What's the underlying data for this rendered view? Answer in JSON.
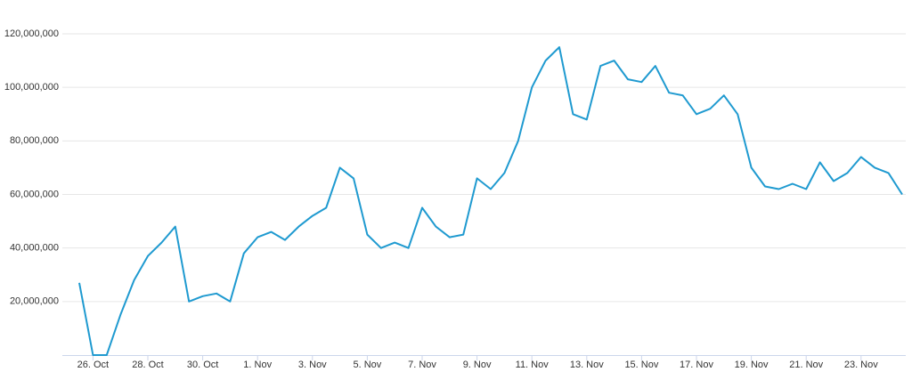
{
  "chart_data": {
    "type": "line",
    "categories": [
      null,
      "26. Oct",
      null,
      null,
      null,
      "28. Oct",
      null,
      null,
      null,
      "30. Oct",
      null,
      null,
      null,
      "1. Nov",
      null,
      null,
      null,
      "3. Nov",
      null,
      null,
      null,
      "5. Nov",
      null,
      null,
      null,
      "7. Nov",
      null,
      null,
      null,
      "9. Nov",
      null,
      null,
      null,
      "11. Nov",
      null,
      null,
      null,
      "13. Nov",
      null,
      null,
      null,
      "15. Nov",
      null,
      null,
      null,
      "17. Nov",
      null,
      null,
      null,
      "19. Nov",
      null,
      null,
      null,
      "21. Nov",
      null,
      null,
      null,
      "23. Nov",
      null,
      null,
      null
    ],
    "series": [
      {
        "color": "#1f9ad0",
        "values": [
          27000000,
          0,
          0,
          15000000,
          28000000,
          37000000,
          42000000,
          48000000,
          20000000,
          22000000,
          23000000,
          20000000,
          38000000,
          44000000,
          46000000,
          43000000,
          48000000,
          52000000,
          55000000,
          70000000,
          66000000,
          45000000,
          40000000,
          42000000,
          40000000,
          55000000,
          48000000,
          44000000,
          45000000,
          66000000,
          62000000,
          68000000,
          80000000,
          100000000,
          110000000,
          115000000,
          90000000,
          88000000,
          108000000,
          110000000,
          103000000,
          102000000,
          108000000,
          98000000,
          97000000,
          90000000,
          92000000,
          97000000,
          90000000,
          70000000,
          63000000,
          62000000,
          64000000,
          62000000,
          72000000,
          65000000,
          68000000,
          74000000,
          70000000,
          68000000,
          60000000
        ]
      }
    ],
    "ylim": [
      0,
      120000000
    ],
    "yticks": [
      {
        "value": 20000000,
        "label": "20,000,000"
      },
      {
        "value": 40000000,
        "label": "40,000,000"
      },
      {
        "value": 60000000,
        "label": "60,000,000"
      },
      {
        "value": 80000000,
        "label": "80,000,000"
      },
      {
        "value": 100000000,
        "label": "100,000,000"
      },
      {
        "value": 120000000,
        "label": "120,000,000"
      }
    ],
    "grid": true
  }
}
